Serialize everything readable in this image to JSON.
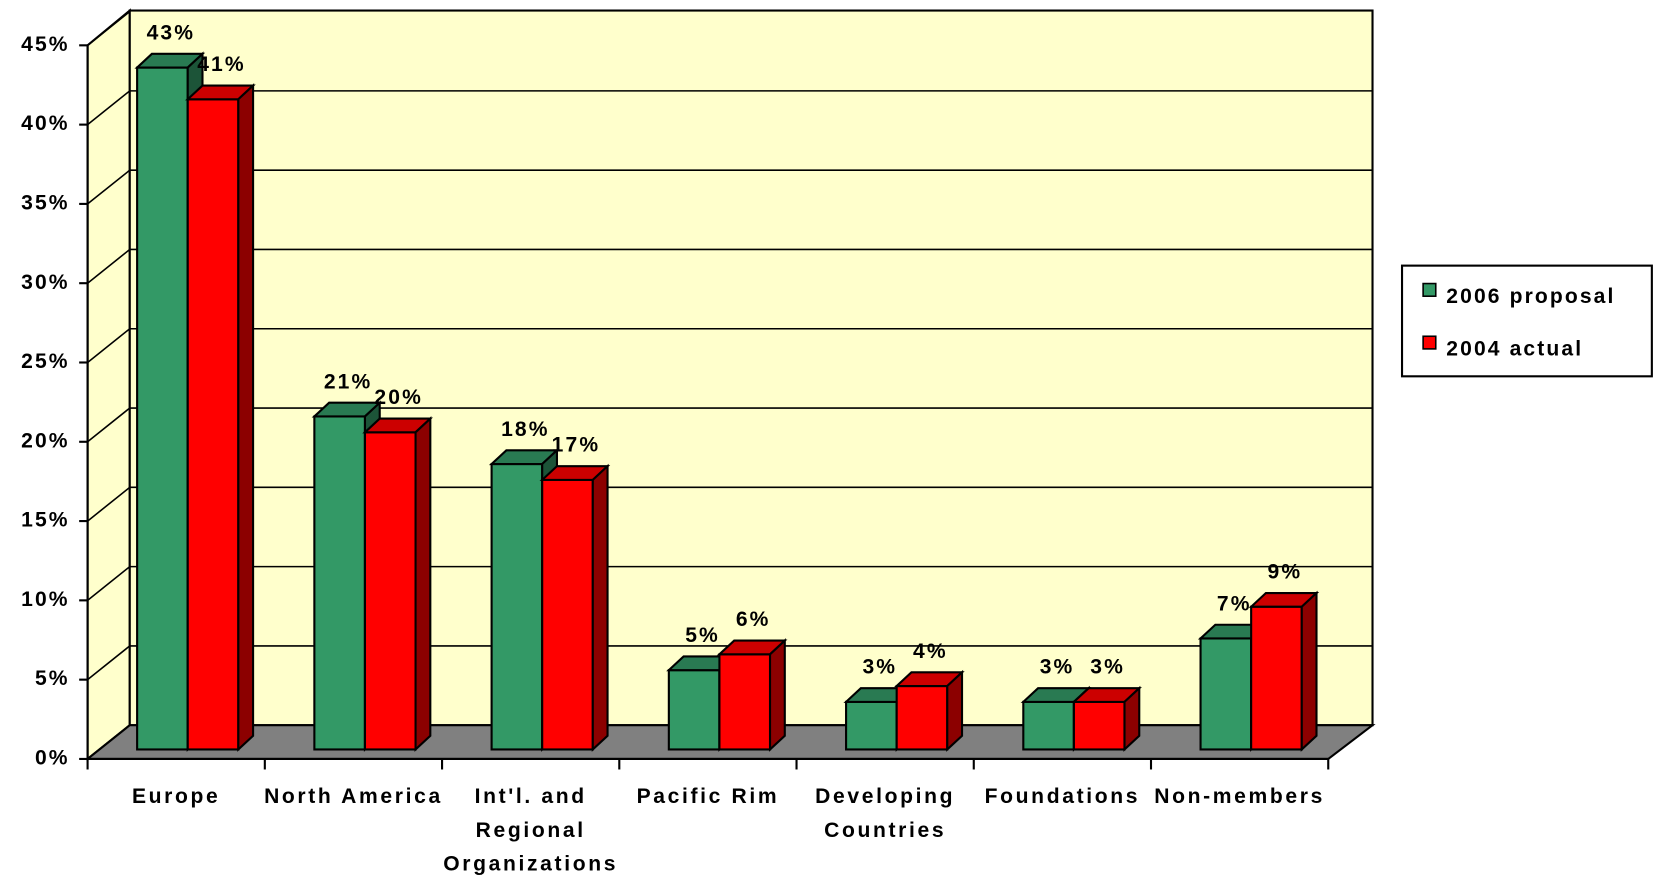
{
  "chart_data": {
    "type": "bar3d",
    "categories": [
      "Europe",
      "North America",
      "Int'l. and\nRegional\nOrganizations",
      "Pacific Rim",
      "Developing\nCountries",
      "Foundations",
      "Non-members"
    ],
    "series": [
      {
        "name": "2006 proposal",
        "color": "#339966",
        "values": [
          43,
          21,
          18,
          5,
          3,
          3,
          7
        ],
        "value_labels": [
          "43%",
          "21%",
          "18%",
          "5%",
          "3%",
          "3%",
          "7%"
        ]
      },
      {
        "name": "2004 actual",
        "color": "#ff0000",
        "values": [
          41,
          20,
          17,
          6,
          4,
          3,
          9
        ],
        "value_labels": [
          "41%",
          "20%",
          "17%",
          "6%",
          "4%",
          "3%",
          "9%"
        ]
      }
    ],
    "ylim": [
      0,
      45
    ],
    "yticks": [
      {
        "value": 0,
        "label": "0%"
      },
      {
        "value": 5,
        "label": "5%"
      },
      {
        "value": 10,
        "label": "10%"
      },
      {
        "value": 15,
        "label": "15%"
      },
      {
        "value": 20,
        "label": "20%"
      },
      {
        "value": 25,
        "label": "25%"
      },
      {
        "value": 30,
        "label": "30%"
      },
      {
        "value": 35,
        "label": "35%"
      },
      {
        "value": 40,
        "label": "40%"
      },
      {
        "value": 45,
        "label": "45%"
      }
    ],
    "grid": true,
    "legend": "right"
  }
}
